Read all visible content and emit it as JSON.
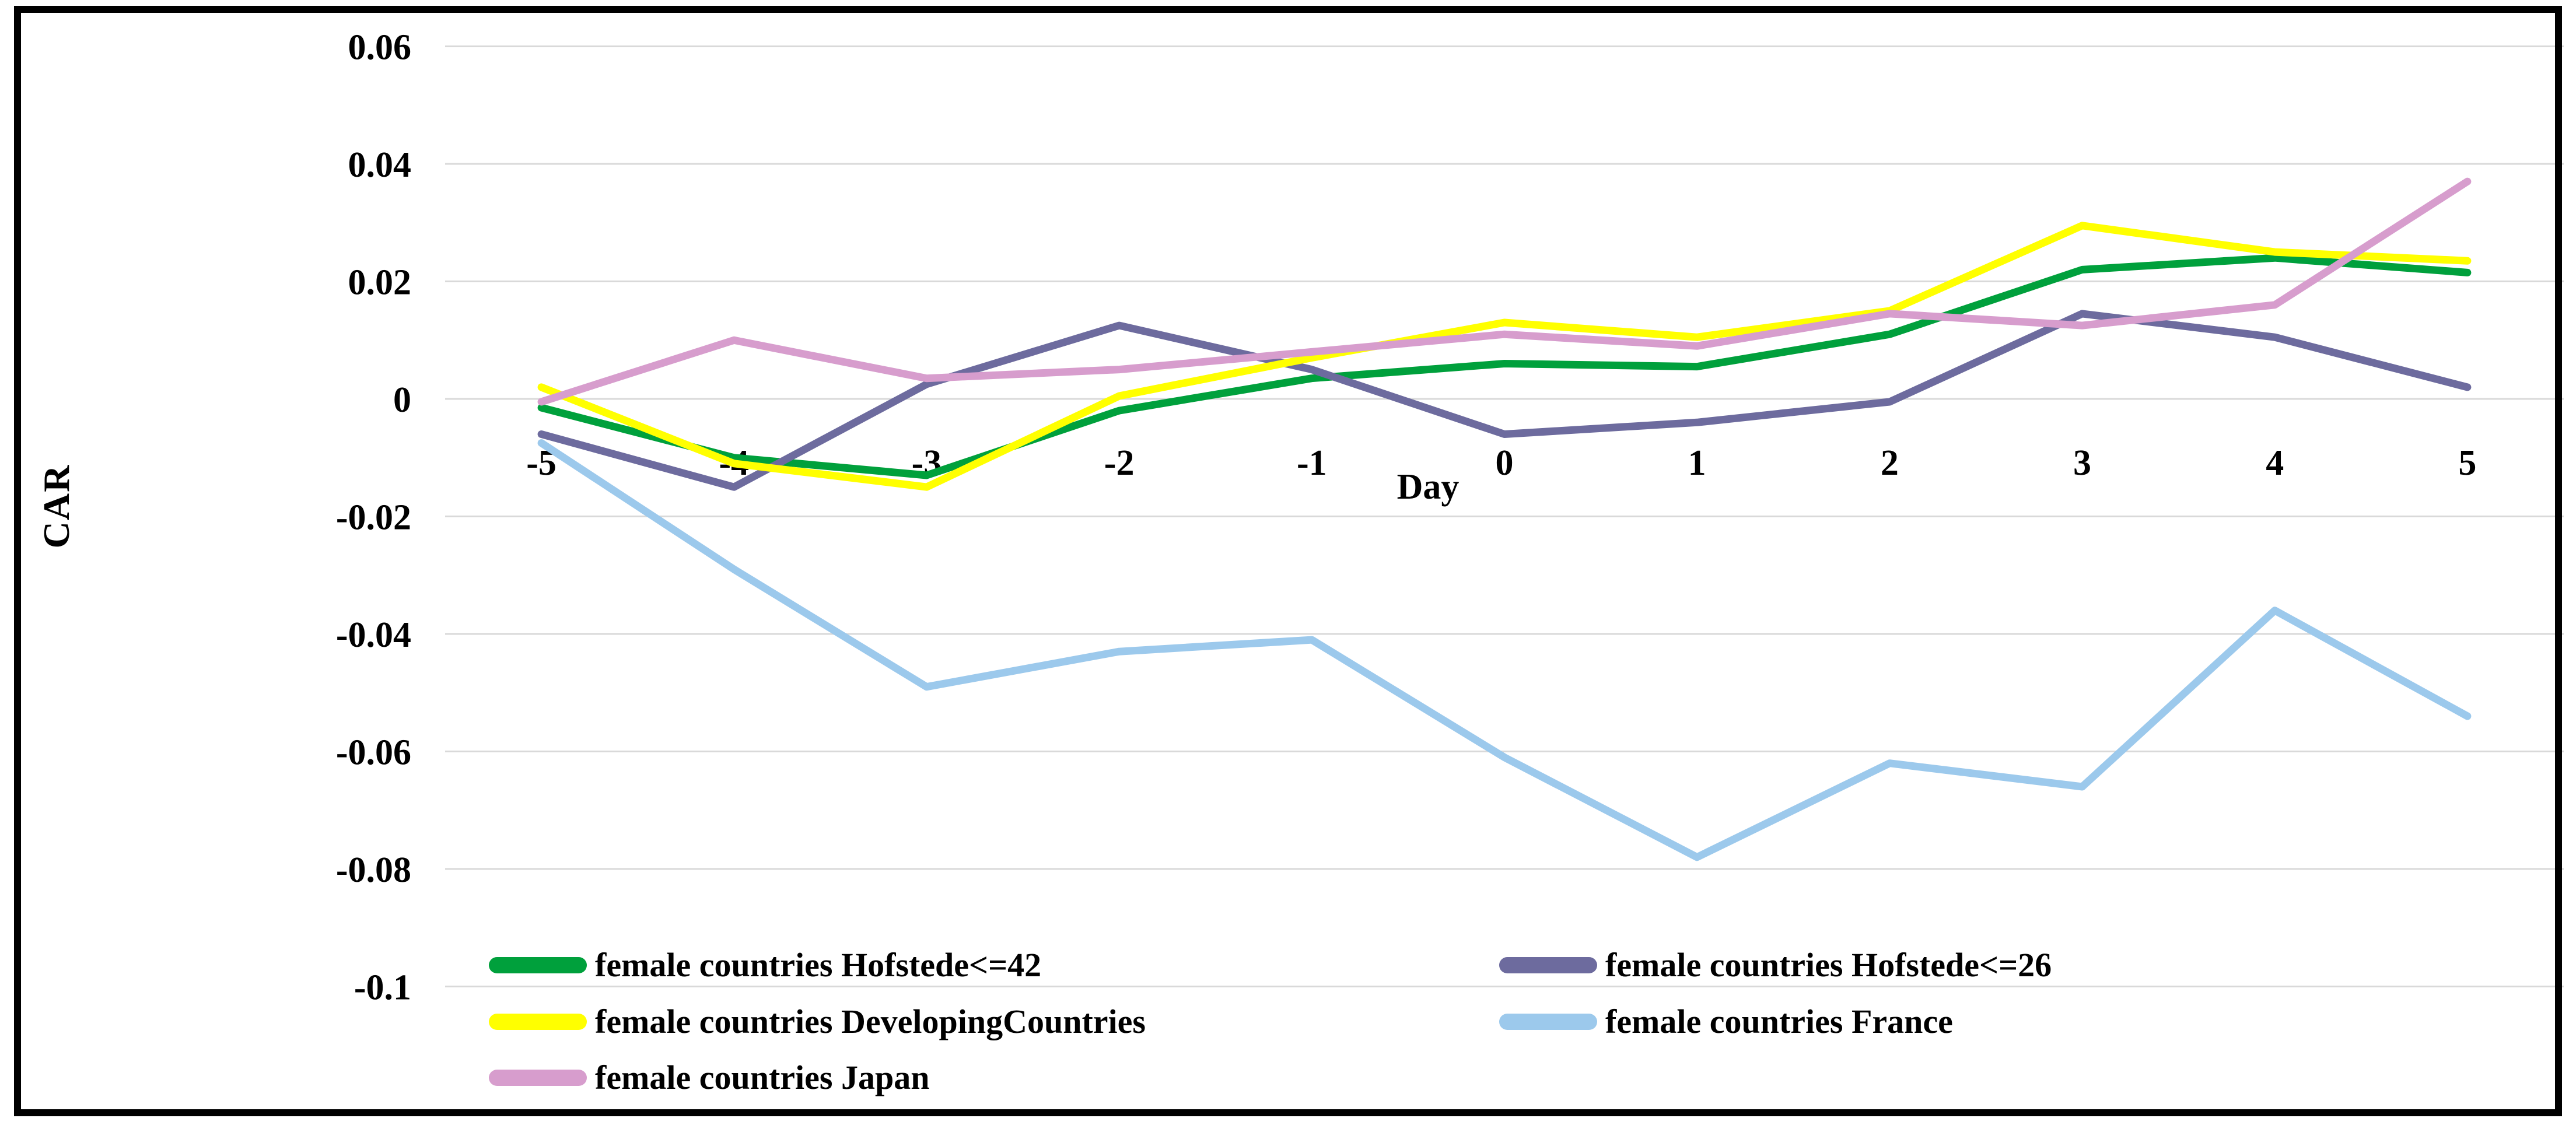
{
  "window": {
    "background": "#ffffff",
    "border_color": "#000000"
  },
  "chart_data": {
    "type": "line",
    "title": "",
    "xlabel": "Day",
    "ylabel": "CAR",
    "categories": [
      "-5",
      "-4",
      "-3",
      "-2",
      "-1",
      "0",
      "1",
      "2",
      "3",
      "4",
      "5"
    ],
    "ylim": [
      -0.1,
      0.06
    ],
    "ytick_interval": 0.02,
    "ytick_labels": [
      "0.06",
      "0.04",
      "0.02",
      "0",
      "-0.02",
      "-0.04",
      "-0.06",
      "-0.08",
      "-0.1"
    ],
    "ytick_values": [
      0.06,
      0.04,
      0.02,
      0,
      -0.02,
      -0.04,
      -0.06,
      -0.08,
      -0.1
    ],
    "grid": true,
    "gridline_color": "#D9D9D9",
    "legend_position": "bottom-left-two-columns",
    "series": [
      {
        "name": "female countries Hofstede<=42",
        "color": "#00A03C",
        "values": [
          -0.0015,
          -0.01,
          -0.013,
          -0.002,
          0.0035,
          0.006,
          0.0055,
          0.011,
          0.022,
          0.024,
          0.0215
        ]
      },
      {
        "name": "female countries Hofstede<=26",
        "color": "#6D6B9E",
        "values": [
          -0.006,
          -0.015,
          0.0025,
          0.0125,
          0.005,
          -0.006,
          -0.004,
          -0.0005,
          0.0145,
          0.0105,
          0.002
        ]
      },
      {
        "name": "female countries DevelopingCountries",
        "color": "#FFFF00",
        "values": [
          0.002,
          -0.011,
          -0.015,
          0.0005,
          0.007,
          0.013,
          0.0105,
          0.015,
          0.0295,
          0.025,
          0.0235
        ]
      },
      {
        "name": "female countries France",
        "color": "#9CC9EC",
        "values": [
          -0.0075,
          -0.029,
          -0.049,
          -0.043,
          -0.041,
          -0.061,
          -0.078,
          -0.062,
          -0.066,
          -0.036,
          -0.054
        ]
      },
      {
        "name": "female countries Japan",
        "color": "#D79DCD",
        "values": [
          -0.0005,
          0.01,
          0.0035,
          0.005,
          0.008,
          0.011,
          0.009,
          0.0145,
          0.0125,
          0.016,
          0.037
        ]
      }
    ]
  }
}
